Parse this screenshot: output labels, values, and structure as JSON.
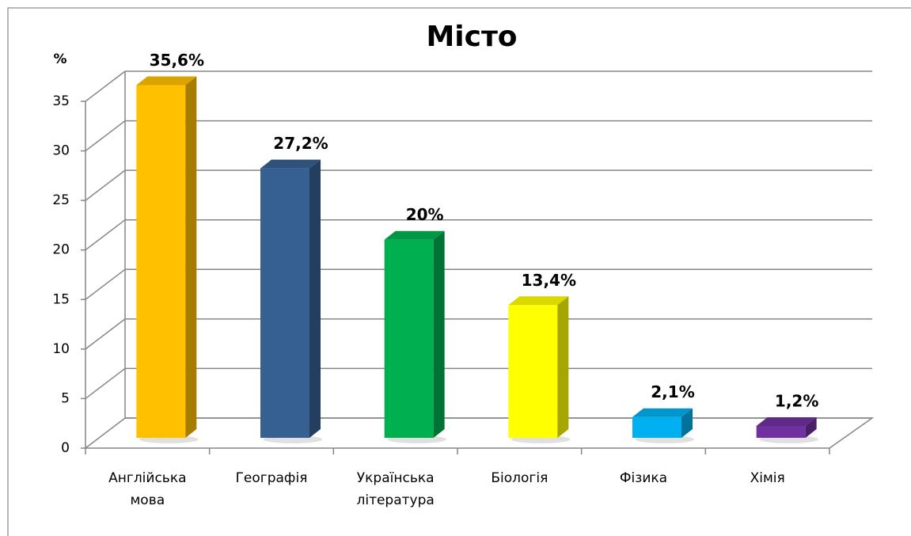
{
  "chart_data": {
    "type": "bar3d",
    "title": "Місто",
    "y_label": "%",
    "categories": [
      "Англійська мова",
      "Географія",
      "Українська література",
      "Біологія",
      "Фізика",
      "Хімія"
    ],
    "values": [
      35.6,
      27.2,
      20,
      13.4,
      2.1,
      1.2
    ],
    "value_labels": [
      "35,6%",
      "27,2%",
      "20%",
      "13,4%",
      "2,1%",
      "1,2%"
    ],
    "colors": [
      "#ffc000",
      "#376092",
      "#00b050",
      "#ffff00",
      "#00b0f0",
      "#7030a0"
    ],
    "ylim": [
      0,
      35
    ],
    "yticks": [
      0,
      5,
      10,
      15,
      20,
      25,
      30,
      35
    ],
    "grid": true
  }
}
